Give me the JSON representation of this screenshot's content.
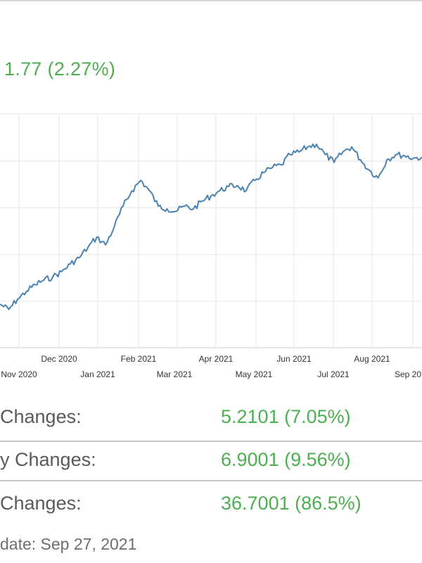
{
  "header": {
    "change_text": "1.77 (2.27%)"
  },
  "chart_data": {
    "type": "line",
    "color": "#4a82b0",
    "x_tick_labels_top": [
      "Dec 2020",
      "Feb 2021",
      "Apr 2021",
      "Jun 2021",
      "Aug 2021"
    ],
    "x_tick_labels_bottom": [
      "Nov 2020",
      "Jan 2021",
      "Mar 2021",
      "May 2021",
      "Jul 2021",
      "Sep 20"
    ],
    "x": [
      "2020-10-26",
      "2020-11-02",
      "2020-11-09",
      "2020-11-16",
      "2020-11-23",
      "2020-11-30",
      "2020-12-07",
      "2020-12-14",
      "2020-12-21",
      "2020-12-28",
      "2021-01-04",
      "2021-01-11",
      "2021-01-18",
      "2021-01-25",
      "2021-02-01",
      "2021-02-08",
      "2021-02-15",
      "2021-02-22",
      "2021-03-01",
      "2021-03-08",
      "2021-03-15",
      "2021-03-22",
      "2021-03-29",
      "2021-04-05",
      "2021-04-12",
      "2021-04-19",
      "2021-04-26",
      "2021-05-03",
      "2021-05-10",
      "2021-05-17",
      "2021-05-24",
      "2021-05-31",
      "2021-06-07",
      "2021-06-14",
      "2021-06-21",
      "2021-06-28",
      "2021-07-05",
      "2021-07-12",
      "2021-07-19",
      "2021-07-26",
      "2021-08-02",
      "2021-08-09",
      "2021-08-16",
      "2021-08-23",
      "2021-08-30",
      "2021-09-06",
      "2021-09-13",
      "2021-09-20",
      "2021-09-27"
    ],
    "values": [
      2.0,
      1.0,
      3.0,
      4.5,
      5.8,
      6.7,
      7.3,
      8.3,
      9.8,
      11.0,
      13.0,
      15.0,
      13.5,
      17.0,
      21.0,
      24.0,
      26.0,
      24.0,
      21.0,
      20.5,
      20.0,
      21.0,
      20.5,
      22.0,
      23.0,
      24.0,
      24.8,
      25.0,
      24.0,
      26.0,
      27.5,
      28.5,
      29.0,
      31.0,
      31.5,
      32.5,
      33.0,
      31.0,
      29.5,
      31.5,
      32.5,
      30.0,
      28.0,
      26.5,
      30.0,
      31.0,
      30.8,
      30.3,
      30.5
    ],
    "ylim": [
      0,
      36
    ],
    "grid": true,
    "legend": "none"
  },
  "stats": [
    {
      "label": "Changes:",
      "value": "5.2101 (7.05%)"
    },
    {
      "label": "y Changes:",
      "value": "6.9001 (9.56%)"
    },
    {
      "label": "Changes:",
      "value": "36.7001 (86.5%)"
    }
  ],
  "footer": {
    "last_update": "date: Sep 27, 2021"
  }
}
